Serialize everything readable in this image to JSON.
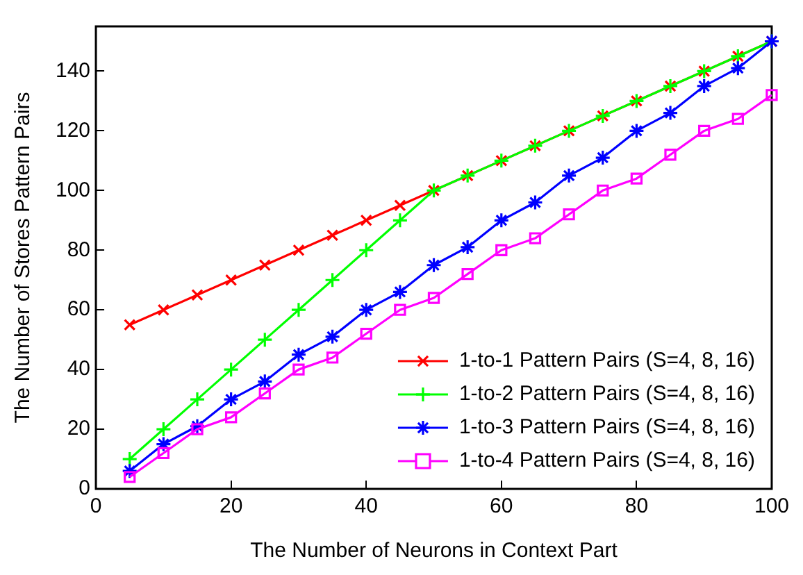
{
  "chart_data": {
    "type": "line",
    "xlabel": "The Number of Neurons in Context Part",
    "ylabel": "The Number of Stores Pattern Pairs",
    "x": [
      5,
      10,
      15,
      20,
      25,
      30,
      35,
      40,
      45,
      50,
      55,
      60,
      65,
      70,
      75,
      80,
      85,
      90,
      95,
      100
    ],
    "xlim": [
      0,
      100
    ],
    "xticks": [
      0,
      20,
      40,
      60,
      80,
      100
    ],
    "ylim": [
      0,
      155
    ],
    "yticks": [
      0,
      20,
      40,
      60,
      80,
      100,
      120,
      140
    ],
    "grid": false,
    "legend": "bottom right",
    "line_style": "solid",
    "series": [
      {
        "name": "1-to-1 Pattern Pairs (S=4, 8, 16)",
        "color": "#ff0000",
        "marker": "x",
        "values": [
          55,
          60,
          65,
          70,
          75,
          80,
          85,
          90,
          95,
          100,
          105,
          110,
          115,
          120,
          125,
          130,
          135,
          140,
          145,
          150
        ]
      },
      {
        "name": "1-to-2 Pattern Pairs (S=4, 8, 16)",
        "color": "#00ff00",
        "marker": "plus",
        "values": [
          10,
          20,
          30,
          40,
          50,
          60,
          70,
          80,
          90,
          100,
          105,
          110,
          115,
          120,
          125,
          130,
          135,
          140,
          145,
          150
        ]
      },
      {
        "name": "1-to-3 Pattern Pairs (S=4, 8, 16)",
        "color": "#0000ff",
        "marker": "cross",
        "values": [
          6,
          15,
          21,
          30,
          36,
          45,
          51,
          60,
          66,
          75,
          81,
          90,
          96,
          105,
          111,
          120,
          126,
          135,
          141,
          150
        ]
      },
      {
        "name": "1-to-4 Pattern Pairs (S=4, 8, 16)",
        "color": "#ff00ff",
        "marker": "square",
        "values": [
          4,
          12,
          20,
          24,
          32,
          40,
          44,
          52,
          60,
          64,
          72,
          80,
          84,
          92,
          100,
          104,
          112,
          120,
          124,
          132
        ]
      }
    ]
  }
}
